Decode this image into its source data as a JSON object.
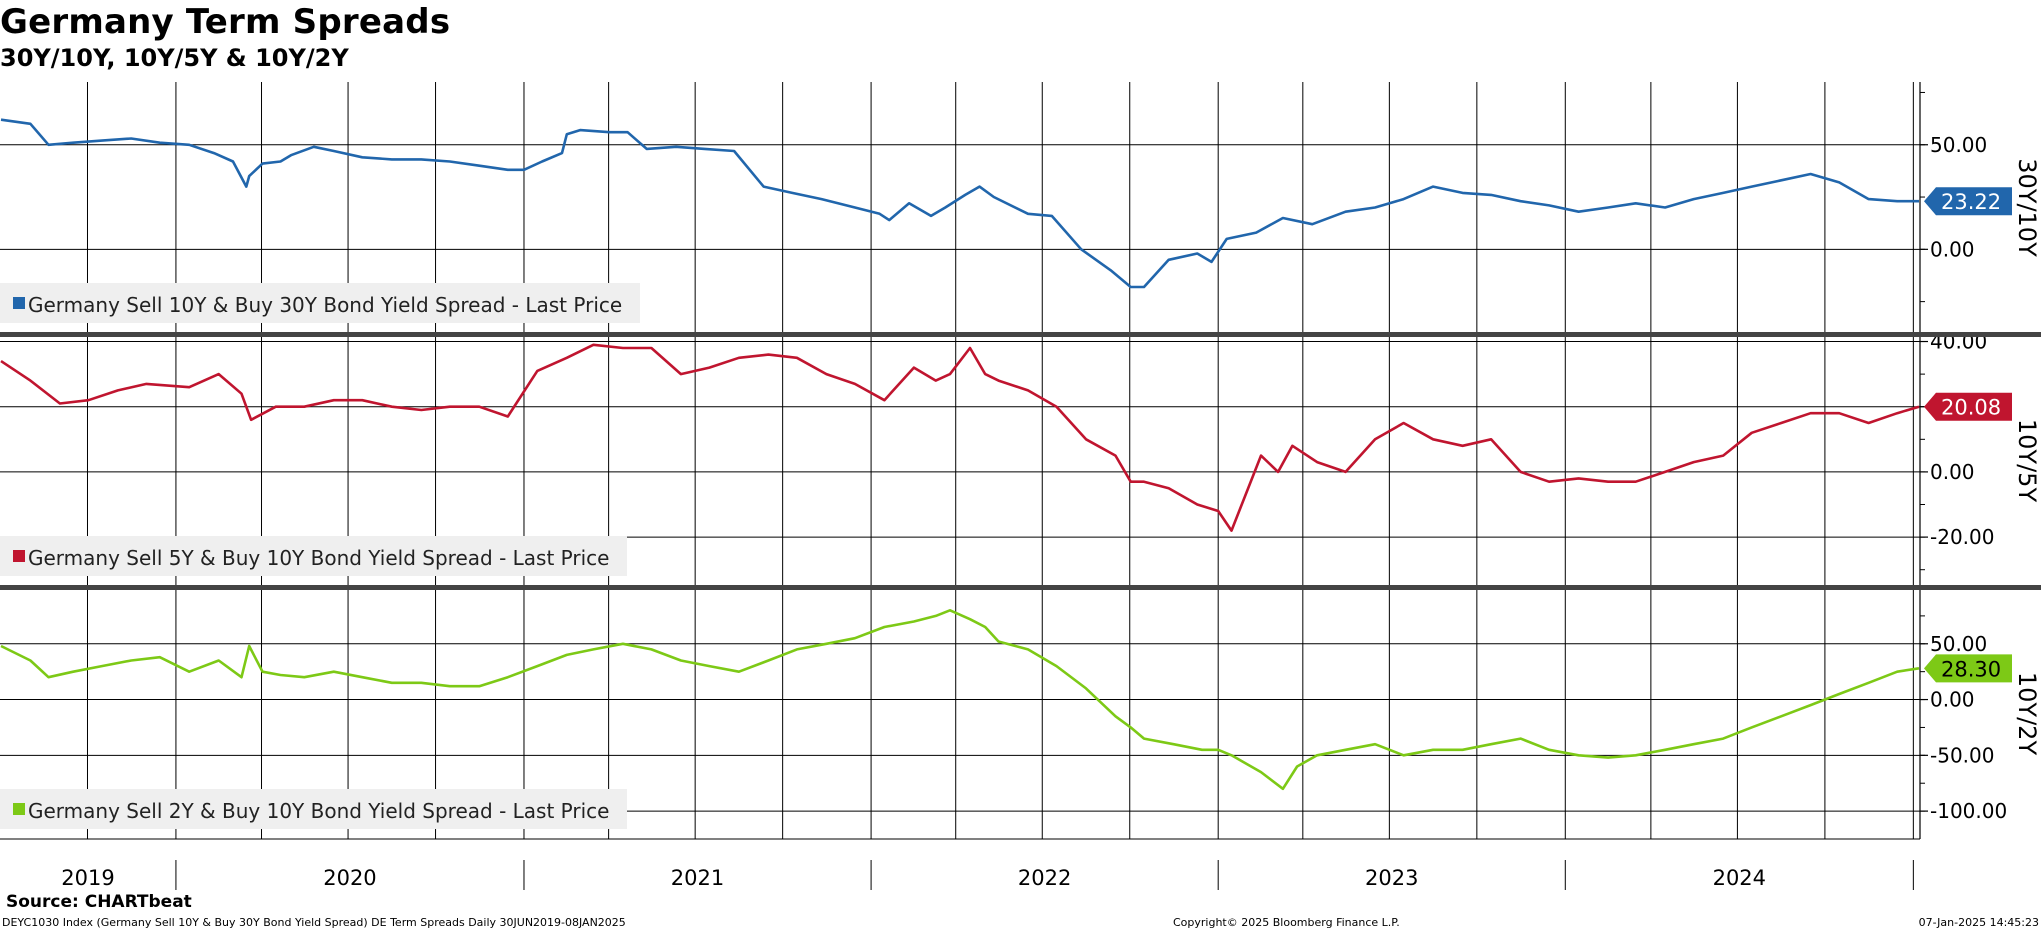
{
  "title": "Germany Term Spreads",
  "subtitle": "30Y/10Y, 10Y/5Y & 10Y/2Y",
  "footer": {
    "source": "Source: CHARTbeat",
    "left": "DEYC1030 Index (Germany Sell 10Y & Buy 30Y Bond Yield Spread) DE Term Spreads  Daily 30JUN2019-08JAN2025",
    "center": "Copyright© 2025 Bloomberg Finance L.P.",
    "right": "07-Jan-2025 14:45:23"
  },
  "chart_data": {
    "type": "line",
    "x_range": [
      "2019-06-30",
      "2025-01-08"
    ],
    "x_tick_labels": [
      "2019",
      "2020",
      "2021",
      "2022",
      "2023",
      "2024"
    ],
    "grid": true,
    "legend_placement": "bottom-left",
    "panels": [
      {
        "axis_label": "30Y/10Y",
        "color": "#2166ac",
        "legend": "Germany Sell 10Y & Buy 30Y Bond Yield Spread - Last Price",
        "last_value_label": "23.22",
        "ylim": [
          -40,
          80
        ],
        "yticks": [
          0,
          50
        ],
        "ytick_labels": [
          "0.00",
          "50.00"
        ],
        "series": {
          "x": [
            "2019-07-01",
            "2019-08-01",
            "2019-08-20",
            "2019-09-15",
            "2019-10-15",
            "2019-11-15",
            "2019-12-15",
            "2020-01-15",
            "2020-02-10",
            "2020-03-01",
            "2020-03-15",
            "2020-03-18",
            "2020-04-01",
            "2020-04-20",
            "2020-05-01",
            "2020-05-25",
            "2020-06-15",
            "2020-07-15",
            "2020-08-15",
            "2020-09-15",
            "2020-10-15",
            "2020-11-15",
            "2020-12-15",
            "2021-01-01",
            "2021-01-20",
            "2021-02-10",
            "2021-02-15",
            "2021-03-01",
            "2021-04-01",
            "2021-04-20",
            "2021-05-10",
            "2021-06-10",
            "2021-07-10",
            "2021-08-10",
            "2021-09-10",
            "2021-10-10",
            "2021-11-10",
            "2021-12-15",
            "2022-01-10",
            "2022-01-20",
            "2022-02-10",
            "2022-03-05",
            "2022-03-20",
            "2022-04-10",
            "2022-04-25",
            "2022-05-10",
            "2022-06-15",
            "2022-07-10",
            "2022-08-10",
            "2022-09-10",
            "2022-10-01",
            "2022-10-15",
            "2022-11-10",
            "2022-12-10",
            "2022-12-25",
            "2023-01-10",
            "2023-02-10",
            "2023-03-10",
            "2023-04-10",
            "2023-05-15",
            "2023-06-15",
            "2023-07-15",
            "2023-08-15",
            "2023-09-15",
            "2023-10-15",
            "2023-11-15",
            "2023-12-15",
            "2024-01-15",
            "2024-02-15",
            "2024-03-15",
            "2024-04-15",
            "2024-05-15",
            "2024-06-15",
            "2024-07-15",
            "2024-08-15",
            "2024-09-15",
            "2024-10-15",
            "2024-11-15",
            "2024-12-15",
            "2025-01-07"
          ],
          "y": [
            62,
            60,
            50,
            51,
            52,
            53,
            51,
            50,
            46,
            42,
            30,
            35,
            41,
            42,
            45,
            49,
            47,
            44,
            43,
            43,
            42,
            40,
            38,
            38,
            42,
            46,
            55,
            57,
            56,
            56,
            48,
            49,
            48,
            47,
            30,
            27,
            24,
            20,
            17,
            14,
            22,
            16,
            20,
            26,
            30,
            25,
            17,
            16,
            0,
            -10,
            -18,
            -18,
            -5,
            -2,
            -6,
            5,
            8,
            15,
            12,
            18,
            20,
            24,
            30,
            27,
            26,
            23,
            21,
            18,
            20,
            22,
            20,
            24,
            27,
            30,
            33,
            36,
            32,
            24,
            23,
            23
          ]
        }
      },
      {
        "axis_label": "10Y/5Y",
        "color": "#c0152f",
        "legend": "Germany Sell 5Y & Buy 10Y Bond Yield Spread - Last Price",
        "last_value_label": "20.08",
        "ylim": [
          -35,
          42
        ],
        "yticks": [
          -20,
          0,
          20,
          40
        ],
        "ytick_labels": [
          "-20.00",
          "0.00",
          "",
          "40.00"
        ],
        "series": {
          "x": [
            "2019-07-01",
            "2019-08-01",
            "2019-09-01",
            "2019-10-01",
            "2019-11-01",
            "2019-12-01",
            "2020-01-15",
            "2020-02-15",
            "2020-03-10",
            "2020-03-20",
            "2020-04-15",
            "2020-05-15",
            "2020-06-15",
            "2020-07-15",
            "2020-08-15",
            "2020-09-15",
            "2020-10-15",
            "2020-11-15",
            "2020-12-15",
            "2021-01-15",
            "2021-02-15",
            "2021-03-15",
            "2021-04-15",
            "2021-05-15",
            "2021-06-15",
            "2021-07-15",
            "2021-08-15",
            "2021-09-15",
            "2021-10-15",
            "2021-11-15",
            "2021-12-15",
            "2022-01-15",
            "2022-02-15",
            "2022-03-10",
            "2022-03-25",
            "2022-04-15",
            "2022-05-01",
            "2022-05-15",
            "2022-06-15",
            "2022-07-15",
            "2022-08-15",
            "2022-09-15",
            "2022-10-01",
            "2022-10-15",
            "2022-11-10",
            "2022-12-10",
            "2023-01-01",
            "2023-01-15",
            "2023-02-15",
            "2023-03-05",
            "2023-03-20",
            "2023-04-15",
            "2023-05-15",
            "2023-06-15",
            "2023-07-15",
            "2023-08-15",
            "2023-09-15",
            "2023-10-15",
            "2023-11-15",
            "2023-12-15",
            "2024-01-15",
            "2024-02-15",
            "2024-03-15",
            "2024-04-15",
            "2024-05-15",
            "2024-06-15",
            "2024-07-15",
            "2024-08-15",
            "2024-09-15",
            "2024-10-15",
            "2024-11-15",
            "2024-12-15",
            "2025-01-07"
          ],
          "y": [
            34,
            28,
            21,
            22,
            25,
            27,
            26,
            30,
            24,
            16,
            20,
            20,
            22,
            22,
            20,
            19,
            20,
            20,
            17,
            31,
            35,
            39,
            38,
            38,
            30,
            32,
            35,
            36,
            35,
            30,
            27,
            22,
            32,
            28,
            30,
            38,
            30,
            28,
            25,
            20,
            10,
            5,
            -3,
            -3,
            -5,
            -10,
            -12,
            -18,
            5,
            0,
            8,
            3,
            0,
            10,
            15,
            10,
            8,
            10,
            0,
            -3,
            -2,
            -3,
            -3,
            0,
            3,
            5,
            12,
            15,
            18,
            18,
            15,
            18,
            20
          ]
        }
      },
      {
        "axis_label": "10Y/2Y",
        "color": "#7dc916",
        "legend": "Germany Sell 2Y & Buy 10Y Bond Yield Spread - Last Price",
        "last_value_label": "28.30",
        "ylim": [
          -125,
          100
        ],
        "yticks": [
          -100,
          -50,
          0,
          50
        ],
        "ytick_labels": [
          "-100.00",
          "-50.00",
          "0.00",
          "50.00"
        ],
        "series": {
          "x": [
            "2019-07-01",
            "2019-08-01",
            "2019-08-20",
            "2019-09-15",
            "2019-10-15",
            "2019-11-15",
            "2019-12-15",
            "2020-01-15",
            "2020-02-15",
            "2020-03-10",
            "2020-03-18",
            "2020-04-01",
            "2020-04-20",
            "2020-05-15",
            "2020-06-15",
            "2020-07-15",
            "2020-08-15",
            "2020-09-15",
            "2020-10-15",
            "2020-11-15",
            "2020-12-15",
            "2021-01-15",
            "2021-02-15",
            "2021-03-15",
            "2021-04-15",
            "2021-05-15",
            "2021-06-15",
            "2021-07-15",
            "2021-08-15",
            "2021-09-15",
            "2021-10-15",
            "2021-11-15",
            "2021-12-15",
            "2022-01-15",
            "2022-02-15",
            "2022-03-10",
            "2022-03-25",
            "2022-04-15",
            "2022-05-01",
            "2022-05-15",
            "2022-06-15",
            "2022-07-15",
            "2022-08-15",
            "2022-09-15",
            "2022-10-01",
            "2022-10-15",
            "2022-11-15",
            "2022-12-15",
            "2023-01-01",
            "2023-01-15",
            "2023-02-15",
            "2023-03-10",
            "2023-03-25",
            "2023-04-15",
            "2023-05-15",
            "2023-06-15",
            "2023-07-15",
            "2023-08-15",
            "2023-09-15",
            "2023-10-15",
            "2023-11-15",
            "2023-12-15",
            "2024-01-15",
            "2024-02-15",
            "2024-03-15",
            "2024-04-15",
            "2024-05-15",
            "2024-06-15",
            "2024-07-15",
            "2024-08-15",
            "2024-09-15",
            "2024-10-15",
            "2024-11-15",
            "2024-12-15",
            "2025-01-07"
          ],
          "y": [
            48,
            35,
            20,
            25,
            30,
            35,
            38,
            25,
            35,
            20,
            48,
            25,
            22,
            20,
            25,
            20,
            15,
            15,
            12,
            12,
            20,
            30,
            40,
            45,
            50,
            45,
            35,
            30,
            25,
            35,
            45,
            50,
            55,
            65,
            70,
            75,
            80,
            72,
            65,
            52,
            45,
            30,
            10,
            -15,
            -25,
            -35,
            -40,
            -45,
            -45,
            -50,
            -65,
            -80,
            -60,
            -50,
            -45,
            -40,
            -50,
            -45,
            -45,
            -40,
            -35,
            -45,
            -50,
            -52,
            -50,
            -45,
            -40,
            -35,
            -25,
            -15,
            -5,
            5,
            15,
            25,
            28
          ]
        }
      }
    ]
  }
}
